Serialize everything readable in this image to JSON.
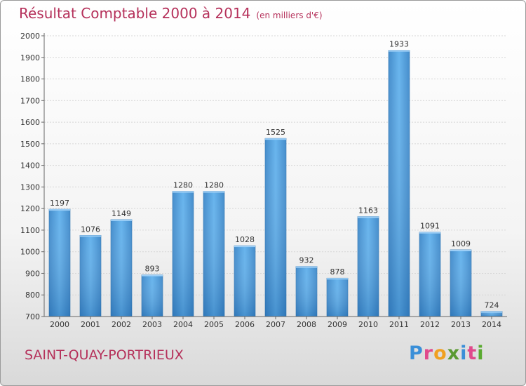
{
  "header": {
    "title": "Résultat Comptable 2000 à 2014",
    "subtitle": "(en milliers d'€)"
  },
  "footer": {
    "city": "SAINT-QUAY-PORTRIEUX",
    "logo_letters": [
      "P",
      "r",
      "o",
      "x",
      "i",
      "t",
      "i"
    ],
    "logo_colors": [
      "#3a8fd8",
      "#e04a8c",
      "#f0a020",
      "#5a9a30",
      "#3a8fd8",
      "#e04a8c",
      "#5aaa30"
    ]
  },
  "chart_data": {
    "type": "bar",
    "title": "Résultat Comptable 2000 à 2014",
    "subtitle": "(en milliers d'€)",
    "xlabel": "",
    "ylabel": "",
    "categories": [
      "2000",
      "2001",
      "2002",
      "2003",
      "2004",
      "2005",
      "2006",
      "2007",
      "2008",
      "2009",
      "2010",
      "2011",
      "2012",
      "2013",
      "2014"
    ],
    "values": [
      1197,
      1076,
      1149,
      893,
      1280,
      1280,
      1028,
      1525,
      932,
      878,
      1163,
      1933,
      1091,
      1009,
      724
    ],
    "ylim": [
      700,
      2000
    ],
    "yticks": [
      700,
      800,
      900,
      1000,
      1100,
      1200,
      1300,
      1400,
      1500,
      1600,
      1700,
      1800,
      1900,
      2000
    ],
    "grid": true,
    "legend": "none",
    "bar_color": "#4a9ee0"
  }
}
